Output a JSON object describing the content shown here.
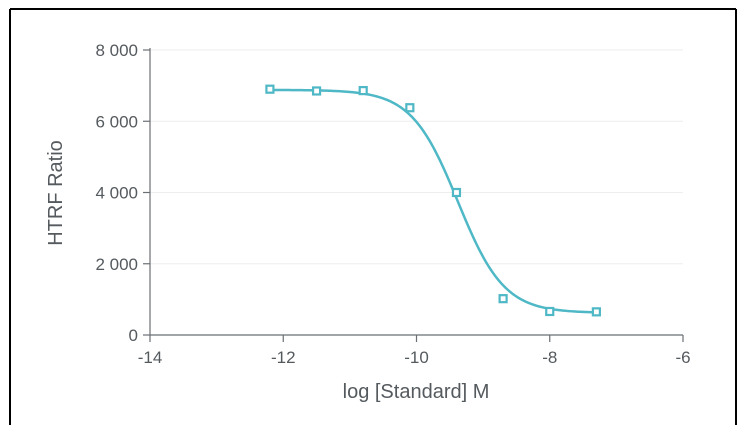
{
  "chart_data": {
    "type": "scatter",
    "xlabel": "log [Standard] M",
    "ylabel": "HTRF Ratio",
    "xlim": [
      -14,
      -6
    ],
    "ylim": [
      0,
      8000
    ],
    "x_ticks": [
      -14,
      -12,
      -10,
      -8,
      -6
    ],
    "y_ticks": [
      0,
      2000,
      4000,
      6000,
      8000
    ],
    "x_tick_labels": [
      "-14",
      "-12",
      "-10",
      "-8",
      "-6"
    ],
    "y_tick_labels": [
      "0",
      "2 000",
      "4 000",
      "6 000",
      "8 000"
    ],
    "grid": "horizontal",
    "series": [
      {
        "x": [
          -12.2,
          -11.5,
          -10.8,
          -10.1,
          -9.4,
          -8.7,
          -8.0,
          -7.3
        ],
        "y": [
          6900,
          6850,
          6860,
          6380,
          4000,
          1020,
          660,
          650
        ],
        "fit": {
          "model": "4PL",
          "top": 6880,
          "bottom": 620,
          "log_ic50": -9.38,
          "hill_slope": 1.25
        }
      }
    ],
    "colors": {
      "series": "#4fb8c6",
      "axis": "#6b6f73",
      "grid": "#eeeeee",
      "text": "#555a5e"
    }
  }
}
